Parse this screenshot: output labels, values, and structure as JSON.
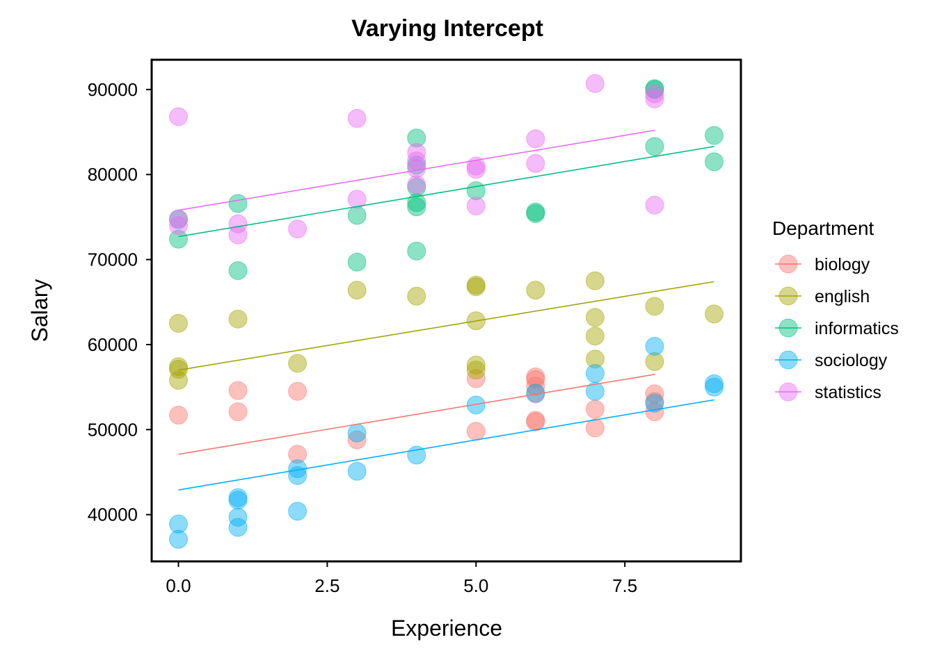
{
  "chart_data": {
    "type": "scatter",
    "title": "Varying Intercept",
    "xlabel": "Experience",
    "ylabel": "Salary",
    "xlim": [
      -0.45,
      9.45
    ],
    "ylim": [
      34500,
      93500
    ],
    "x_ticks": [
      {
        "value": 0.0,
        "label": "0.0"
      },
      {
        "value": 2.5,
        "label": "2.5"
      },
      {
        "value": 5.0,
        "label": "5.0"
      },
      {
        "value": 7.5,
        "label": "7.5"
      }
    ],
    "y_ticks": [
      {
        "value": 40000,
        "label": "40000"
      },
      {
        "value": 50000,
        "label": "50000"
      },
      {
        "value": 60000,
        "label": "60000"
      },
      {
        "value": 70000,
        "label": "70000"
      },
      {
        "value": 80000,
        "label": "80000"
      },
      {
        "value": 90000,
        "label": "90000"
      }
    ],
    "grid": false,
    "legend": {
      "title": "Department",
      "placement": "right"
    },
    "series": [
      {
        "name": "biology",
        "color": "#F8766D",
        "line": {
          "x": [
            0,
            8
          ],
          "y": [
            47100,
            56500
          ]
        },
        "points": [
          [
            0,
            51700
          ],
          [
            1,
            54600
          ],
          [
            1,
            52100
          ],
          [
            2,
            54500
          ],
          [
            2,
            47100
          ],
          [
            3,
            48800
          ],
          [
            5,
            56000
          ],
          [
            5,
            49800
          ],
          [
            6,
            56200
          ],
          [
            6,
            55900
          ],
          [
            6,
            55100
          ],
          [
            6,
            54200
          ],
          [
            6,
            51100
          ],
          [
            6,
            50900
          ],
          [
            7,
            52400
          ],
          [
            7,
            50200
          ],
          [
            8,
            54200
          ],
          [
            8,
            53300
          ],
          [
            8,
            52100
          ]
        ]
      },
      {
        "name": "english",
        "color": "#A3A500",
        "line": {
          "x": [
            0,
            9
          ],
          "y": [
            57000,
            67400
          ]
        },
        "points": [
          [
            0,
            62500
          ],
          [
            0,
            57400
          ],
          [
            0,
            57100
          ],
          [
            0,
            55800
          ],
          [
            1,
            63000
          ],
          [
            2,
            57800
          ],
          [
            3,
            66400
          ],
          [
            4,
            65700
          ],
          [
            5,
            67000
          ],
          [
            5,
            66800
          ],
          [
            5,
            62800
          ],
          [
            5,
            57600
          ],
          [
            5,
            57000
          ],
          [
            6,
            66400
          ],
          [
            7,
            67500
          ],
          [
            7,
            63200
          ],
          [
            7,
            61000
          ],
          [
            7,
            58300
          ],
          [
            8,
            64500
          ],
          [
            8,
            58000
          ],
          [
            9,
            63600
          ]
        ]
      },
      {
        "name": "informatics",
        "color": "#00BF7D",
        "line": {
          "x": [
            0,
            9
          ],
          "y": [
            72700,
            83300
          ]
        },
        "points": [
          [
            0,
            74700
          ],
          [
            0,
            72400
          ],
          [
            1,
            76600
          ],
          [
            1,
            68700
          ],
          [
            3,
            75200
          ],
          [
            3,
            69700
          ],
          [
            4,
            84300
          ],
          [
            4,
            81100
          ],
          [
            4,
            78500
          ],
          [
            4,
            76700
          ],
          [
            4,
            76200
          ],
          [
            4,
            71000
          ],
          [
            5,
            78100
          ],
          [
            6,
            75600
          ],
          [
            6,
            75400
          ],
          [
            8,
            90100
          ],
          [
            8,
            90000
          ],
          [
            8,
            83300
          ],
          [
            9,
            84600
          ],
          [
            9,
            81500
          ]
        ]
      },
      {
        "name": "sociology",
        "color": "#00B0F6",
        "line": {
          "x": [
            0,
            9
          ],
          "y": [
            42900,
            53500
          ]
        },
        "points": [
          [
            0,
            38900
          ],
          [
            0,
            37100
          ],
          [
            1,
            42000
          ],
          [
            1,
            41700
          ],
          [
            1,
            39700
          ],
          [
            1,
            38500
          ],
          [
            2,
            45400
          ],
          [
            2,
            44600
          ],
          [
            2,
            40400
          ],
          [
            3,
            49600
          ],
          [
            3,
            45100
          ],
          [
            4,
            47000
          ],
          [
            5,
            52900
          ],
          [
            6,
            54300
          ],
          [
            7,
            56600
          ],
          [
            7,
            54500
          ],
          [
            8,
            59800
          ],
          [
            8,
            53100
          ],
          [
            9,
            55400
          ],
          [
            9,
            55000
          ]
        ]
      },
      {
        "name": "statistics",
        "color": "#E76BF3",
        "line": {
          "x": [
            0,
            8
          ],
          "y": [
            75800,
            85200
          ]
        },
        "points": [
          [
            0,
            86800
          ],
          [
            0,
            74800
          ],
          [
            0,
            74000
          ],
          [
            1,
            74200
          ],
          [
            1,
            72900
          ],
          [
            2,
            73600
          ],
          [
            3,
            86600
          ],
          [
            3,
            77100
          ],
          [
            4,
            82600
          ],
          [
            4,
            81600
          ],
          [
            4,
            80700
          ],
          [
            4,
            78800
          ],
          [
            5,
            81000
          ],
          [
            5,
            80600
          ],
          [
            5,
            76300
          ],
          [
            6,
            84200
          ],
          [
            6,
            81300
          ],
          [
            7,
            90700
          ],
          [
            8,
            89500
          ],
          [
            8,
            88900
          ],
          [
            8,
            76400
          ]
        ]
      }
    ]
  }
}
